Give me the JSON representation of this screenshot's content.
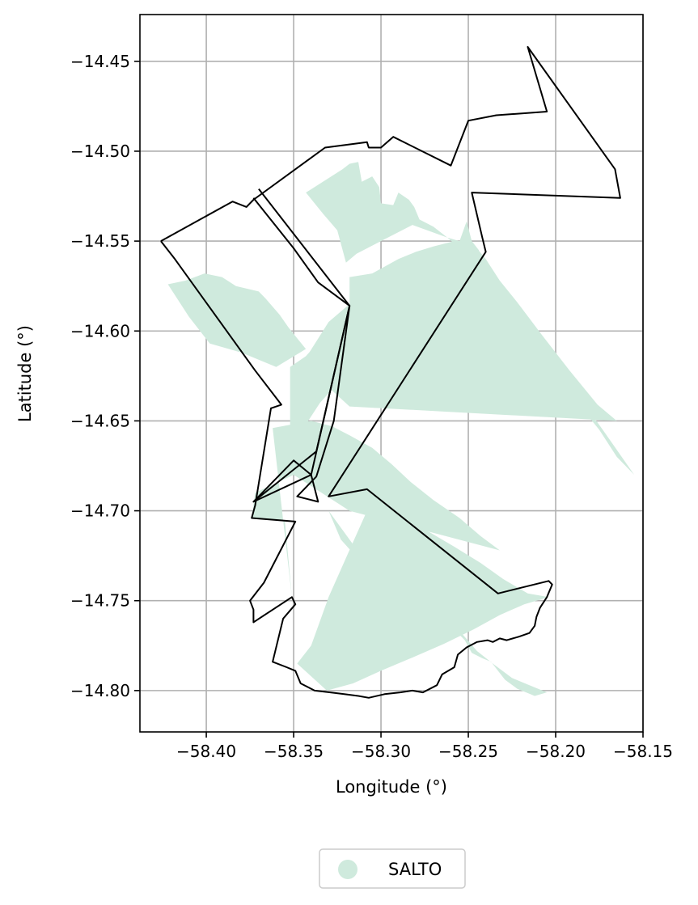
{
  "chart_data": {
    "type": "map",
    "xlabel": "Longitude (°)",
    "ylabel": "Latitude (°)",
    "xlim": [
      -58.438,
      -58.15
    ],
    "ylim": [
      -14.823,
      -14.424
    ],
    "xticks": [
      -58.4,
      -58.35,
      -58.3,
      -58.25,
      -58.2,
      -58.15
    ],
    "xtick_labels": [
      "−58.40",
      "−58.35",
      "−58.30",
      "−58.25",
      "−58.20",
      "−58.15"
    ],
    "yticks": [
      -14.45,
      -14.5,
      -14.55,
      -14.6,
      -14.65,
      -14.7,
      -14.75,
      -14.8
    ],
    "ytick_labels": [
      "−14.45",
      "−14.50",
      "−14.55",
      "−14.60",
      "−14.65",
      "−14.70",
      "−14.75",
      "−14.80"
    ],
    "grid": true,
    "legend": {
      "position": "bottom-center",
      "entries": [
        {
          "label": "SALTO",
          "color": "#cfeadd"
        }
      ]
    },
    "fill_color": "#cfeadd",
    "boundary_color": "#000000",
    "filled_regions": [
      [
        [
          -58.322,
          -14.51
        ],
        [
          -58.318,
          -14.507
        ],
        [
          -58.313,
          -14.506
        ],
        [
          -58.311,
          -14.517
        ],
        [
          -58.305,
          -14.514
        ],
        [
          -58.301,
          -14.52
        ],
        [
          -58.3,
          -14.529
        ],
        [
          -58.293,
          -14.53
        ],
        [
          -58.29,
          -14.523
        ],
        [
          -58.284,
          -14.527
        ],
        [
          -58.281,
          -14.531
        ],
        [
          -58.278,
          -14.538
        ],
        [
          -58.27,
          -14.542
        ],
        [
          -58.262,
          -14.548
        ],
        [
          -58.255,
          -14.55
        ],
        [
          -58.251,
          -14.539
        ],
        [
          -58.248,
          -14.55
        ],
        [
          -58.244,
          -14.555
        ],
        [
          -58.245,
          -14.566
        ],
        [
          -58.235,
          -14.578
        ],
        [
          -58.22,
          -14.6
        ],
        [
          -58.2,
          -14.625
        ],
        [
          -58.19,
          -14.637
        ],
        [
          -58.175,
          -14.655
        ],
        [
          -58.165,
          -14.67
        ],
        [
          -58.155,
          -14.68
        ],
        [
          -58.173,
          -14.655
        ],
        [
          -58.19,
          -14.632
        ],
        [
          -58.205,
          -14.616
        ],
        [
          -58.218,
          -14.604
        ],
        [
          -58.24,
          -14.577
        ],
        [
          -58.248,
          -14.56
        ],
        [
          -58.262,
          -14.548
        ],
        [
          -58.282,
          -14.541
        ],
        [
          -58.3,
          -14.55
        ],
        [
          -58.314,
          -14.557
        ],
        [
          -58.32,
          -14.562
        ],
        [
          -58.325,
          -14.544
        ],
        [
          -58.333,
          -14.535
        ],
        [
          -58.343,
          -14.523
        ]
      ],
      [
        [
          -58.318,
          -14.57
        ],
        [
          -58.305,
          -14.568
        ],
        [
          -58.29,
          -14.56
        ],
        [
          -58.28,
          -14.556
        ],
        [
          -58.27,
          -14.553
        ],
        [
          -58.258,
          -14.55
        ],
        [
          -58.246,
          -14.553
        ],
        [
          -58.24,
          -14.56
        ],
        [
          -58.232,
          -14.572
        ],
        [
          -58.222,
          -14.584
        ],
        [
          -58.208,
          -14.602
        ],
        [
          -58.192,
          -14.622
        ],
        [
          -58.176,
          -14.641
        ],
        [
          -58.165,
          -14.65
        ],
        [
          -58.318,
          -14.642
        ],
        [
          -58.345,
          -14.618
        ],
        [
          -58.33,
          -14.595
        ],
        [
          -58.318,
          -14.585
        ]
      ],
      [
        [
          -58.422,
          -14.574
        ],
        [
          -58.412,
          -14.572
        ],
        [
          -58.401,
          -14.568
        ],
        [
          -58.391,
          -14.57
        ],
        [
          -58.383,
          -14.575
        ],
        [
          -58.37,
          -14.578
        ],
        [
          -58.366,
          -14.582
        ],
        [
          -58.358,
          -14.591
        ],
        [
          -58.353,
          -14.598
        ],
        [
          -58.348,
          -14.604
        ],
        [
          -58.343,
          -14.61
        ],
        [
          -58.36,
          -14.62
        ],
        [
          -58.38,
          -14.612
        ],
        [
          -58.398,
          -14.607
        ],
        [
          -58.41,
          -14.592
        ]
      ],
      [
        [
          -58.352,
          -14.62
        ],
        [
          -58.343,
          -14.614
        ],
        [
          -58.334,
          -14.604
        ],
        [
          -58.322,
          -14.592
        ],
        [
          -58.31,
          -14.58
        ],
        [
          -58.299,
          -14.57
        ],
        [
          -58.302,
          -14.592
        ],
        [
          -58.313,
          -14.612
        ],
        [
          -58.322,
          -14.626
        ],
        [
          -58.335,
          -14.64
        ],
        [
          -58.345,
          -14.655
        ],
        [
          -58.352,
          -14.66
        ]
      ],
      [
        [
          -58.362,
          -14.654
        ],
        [
          -58.34,
          -14.65
        ],
        [
          -58.328,
          -14.653
        ],
        [
          -58.318,
          -14.658
        ],
        [
          -58.305,
          -14.665
        ],
        [
          -58.294,
          -14.674
        ],
        [
          -58.283,
          -14.684
        ],
        [
          -58.27,
          -14.694
        ],
        [
          -58.255,
          -14.704
        ],
        [
          -58.243,
          -14.714
        ],
        [
          -58.232,
          -14.722
        ],
        [
          -58.318,
          -14.7
        ],
        [
          -58.35,
          -14.68
        ],
        [
          -58.372,
          -14.69
        ],
        [
          -58.374,
          -14.704
        ],
        [
          -58.355,
          -14.706
        ],
        [
          -58.351,
          -14.748
        ]
      ],
      [
        [
          -58.33,
          -14.7
        ],
        [
          -58.315,
          -14.72
        ],
        [
          -58.3,
          -14.738
        ],
        [
          -58.286,
          -14.751
        ],
        [
          -58.27,
          -14.76
        ],
        [
          -58.258,
          -14.766
        ],
        [
          -58.252,
          -14.772
        ],
        [
          -58.248,
          -14.779
        ],
        [
          -58.242,
          -14.782
        ],
        [
          -58.237,
          -14.784
        ],
        [
          -58.233,
          -14.789
        ],
        [
          -58.229,
          -14.794
        ],
        [
          -58.222,
          -14.799
        ],
        [
          -58.212,
          -14.803
        ],
        [
          -58.205,
          -14.801
        ],
        [
          -58.215,
          -14.797
        ],
        [
          -58.225,
          -14.793
        ],
        [
          -58.236,
          -14.785
        ],
        [
          -58.245,
          -14.778
        ],
        [
          -58.253,
          -14.769
        ],
        [
          -58.264,
          -14.76
        ],
        [
          -58.28,
          -14.751
        ],
        [
          -58.296,
          -14.741
        ],
        [
          -58.311,
          -14.729
        ],
        [
          -58.323,
          -14.716
        ]
      ],
      [
        [
          -58.33,
          -14.748
        ],
        [
          -58.319,
          -14.724
        ],
        [
          -58.308,
          -14.7
        ],
        [
          -58.29,
          -14.703
        ],
        [
          -58.272,
          -14.712
        ],
        [
          -58.258,
          -14.72
        ],
        [
          -58.243,
          -14.729
        ],
        [
          -58.23,
          -14.738
        ],
        [
          -58.216,
          -14.746
        ],
        [
          -58.204,
          -14.748
        ],
        [
          -58.218,
          -14.752
        ],
        [
          -58.232,
          -14.758
        ],
        [
          -58.247,
          -14.766
        ],
        [
          -58.264,
          -14.774
        ],
        [
          -58.283,
          -14.782
        ],
        [
          -58.3,
          -14.789
        ],
        [
          -58.316,
          -14.796
        ],
        [
          -58.331,
          -14.8
        ],
        [
          -58.348,
          -14.785
        ],
        [
          -58.34,
          -14.775
        ]
      ]
    ],
    "boundaries": [
      [
        [
          -58.426,
          -14.55
        ],
        [
          -58.385,
          -14.528
        ],
        [
          -58.377,
          -14.531
        ],
        [
          -58.373,
          -14.527
        ],
        [
          -58.332,
          -14.498
        ],
        [
          -58.308,
          -14.495
        ],
        [
          -58.307,
          -14.498
        ],
        [
          -58.3,
          -14.498
        ],
        [
          -58.293,
          -14.492
        ],
        [
          -58.26,
          -14.508
        ],
        [
          -58.25,
          -14.483
        ],
        [
          -58.234,
          -14.48
        ],
        [
          -58.205,
          -14.478
        ],
        [
          -58.216,
          -14.442
        ],
        [
          -58.166,
          -14.51
        ],
        [
          -58.163,
          -14.526
        ],
        [
          -58.248,
          -14.523
        ],
        [
          -58.242,
          -14.548
        ],
        [
          -58.24,
          -14.556
        ],
        [
          -58.33,
          -14.692
        ],
        [
          -58.308,
          -14.688
        ],
        [
          -58.233,
          -14.746
        ],
        [
          -58.204,
          -14.739
        ],
        [
          -58.202,
          -14.741
        ],
        [
          -58.205,
          -14.748
        ],
        [
          -58.209,
          -14.754
        ],
        [
          -58.211,
          -14.759
        ],
        [
          -58.212,
          -14.764
        ],
        [
          -58.215,
          -14.768
        ],
        [
          -58.221,
          -14.77
        ],
        [
          -58.228,
          -14.772
        ],
        [
          -58.232,
          -14.771
        ],
        [
          -58.236,
          -14.773
        ],
        [
          -58.239,
          -14.772
        ],
        [
          -58.245,
          -14.773
        ],
        [
          -58.251,
          -14.776
        ],
        [
          -58.256,
          -14.78
        ],
        [
          -58.258,
          -14.787
        ],
        [
          -58.265,
          -14.791
        ],
        [
          -58.268,
          -14.797
        ],
        [
          -58.276,
          -14.801
        ],
        [
          -58.282,
          -14.8
        ],
        [
          -58.289,
          -14.801
        ],
        [
          -58.298,
          -14.802
        ],
        [
          -58.307,
          -14.804
        ],
        [
          -58.313,
          -14.803
        ],
        [
          -58.321,
          -14.802
        ],
        [
          -58.329,
          -14.801
        ],
        [
          -58.338,
          -14.8
        ],
        [
          -58.346,
          -14.796
        ],
        [
          -58.349,
          -14.789
        ],
        [
          -58.354,
          -14.787
        ],
        [
          -58.362,
          -14.784
        ],
        [
          -58.356,
          -14.76
        ],
        [
          -58.349,
          -14.752
        ],
        [
          -58.351,
          -14.748
        ],
        [
          -58.373,
          -14.762
        ],
        [
          -58.373,
          -14.755
        ],
        [
          -58.375,
          -14.75
        ],
        [
          -58.367,
          -14.74
        ],
        [
          -58.349,
          -14.706
        ],
        [
          -58.374,
          -14.704
        ],
        [
          -58.372,
          -14.697
        ],
        [
          -58.363,
          -14.643
        ],
        [
          -58.357,
          -14.641
        ],
        [
          -58.372,
          -14.622
        ],
        [
          -58.418,
          -14.56
        ],
        [
          -58.426,
          -14.55
        ]
      ],
      [
        [
          -58.373,
          -14.526
        ],
        [
          -58.35,
          -14.554
        ],
        [
          -58.336,
          -14.573
        ],
        [
          -58.318,
          -14.586
        ],
        [
          -58.327,
          -14.65
        ],
        [
          -58.337,
          -14.681
        ],
        [
          -58.348,
          -14.692
        ],
        [
          -58.336,
          -14.695
        ],
        [
          -58.34,
          -14.68
        ],
        [
          -58.35,
          -14.672
        ],
        [
          -58.373,
          -14.695
        ],
        [
          -58.34,
          -14.68
        ],
        [
          -58.318,
          -14.586
        ]
      ],
      [
        [
          -58.37,
          -14.521
        ],
        [
          -58.318,
          -14.586
        ],
        [
          -58.337,
          -14.667
        ],
        [
          -58.373,
          -14.695
        ]
      ]
    ]
  }
}
